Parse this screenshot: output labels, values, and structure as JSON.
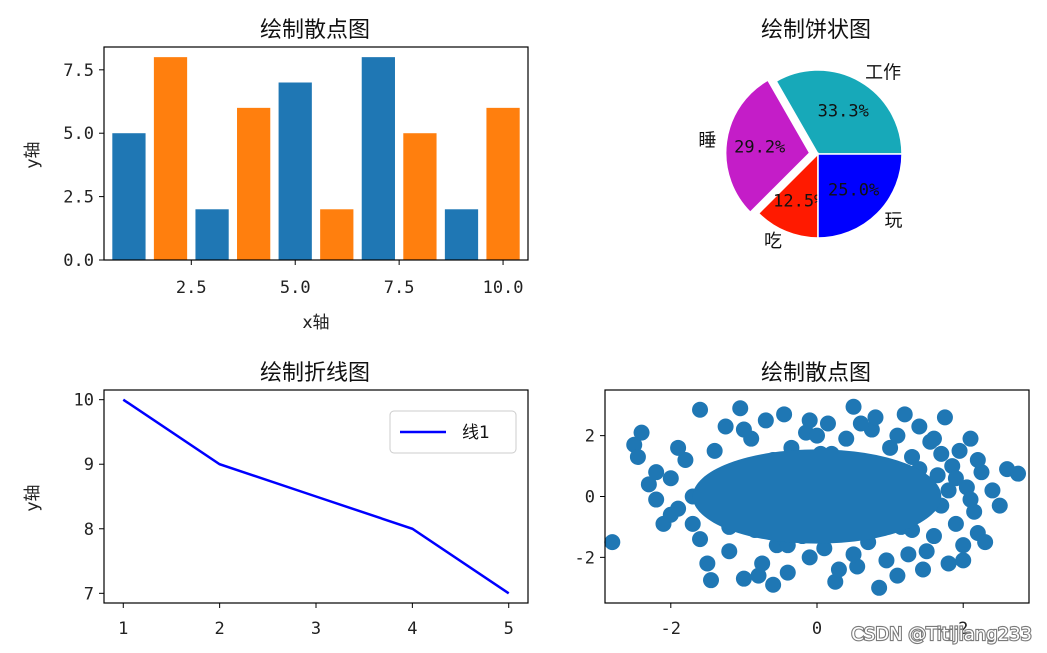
{
  "watermark": "CSDN @Titijiang233",
  "chart_data": [
    {
      "type": "bar",
      "title": "绘制散点图",
      "xlabel": "x轴",
      "ylabel": "y轴",
      "xlim": [
        0.4,
        10.6
      ],
      "ylim": [
        0,
        8.4
      ],
      "xticks": [
        "2.5",
        "5.0",
        "7.5",
        "10.0"
      ],
      "yticks": [
        "0.0",
        "2.5",
        "5.0",
        "7.5"
      ],
      "colors": [
        "#1f77b4",
        "#ff7f0e"
      ],
      "series": [
        {
          "x": [
            1,
            3,
            5,
            7,
            9
          ],
          "values": [
            5,
            2,
            7,
            8,
            2
          ]
        },
        {
          "x": [
            2,
            4,
            6,
            8,
            10
          ],
          "values": [
            8,
            6,
            2,
            5,
            6
          ]
        }
      ]
    },
    {
      "type": "pie",
      "title": "绘制饼状图",
      "labels": [
        "工作",
        "睡",
        "吃",
        "玩"
      ],
      "values": [
        33.3,
        29.2,
        12.5,
        25.0
      ],
      "pct_labels": [
        "33.3%",
        "29.2%",
        "12.5%",
        "25.0%"
      ],
      "colors": [
        "#17a9b9",
        "#c41dc8",
        "#ff1a00",
        "#0000ff"
      ],
      "explode": [
        0,
        0.1,
        0,
        0
      ]
    },
    {
      "type": "line",
      "title": "绘制折线图",
      "xlabel": "",
      "ylabel": "y轴",
      "x": [
        1,
        2,
        3,
        4,
        5
      ],
      "xlim": [
        0.8,
        5.2
      ],
      "ylim": [
        6.85,
        10.15
      ],
      "xticks": [
        "1",
        "2",
        "3",
        "4",
        "5"
      ],
      "yticks": [
        "7",
        "8",
        "9",
        "10"
      ],
      "legend": "top-right",
      "series": [
        {
          "name": "线1",
          "values": [
            10,
            9,
            8.5,
            8,
            7
          ],
          "color": "#0000ff"
        }
      ]
    },
    {
      "type": "scatter",
      "title": "绘制散点图",
      "xlim": [
        -2.9,
        2.9
      ],
      "ylim": [
        -3.5,
        3.5
      ],
      "xticks": [
        "-2",
        "0",
        "2"
      ],
      "yticks": [
        "-2",
        "0",
        "2"
      ],
      "color": "#1f77b4",
      "points": [
        [
          -2.8,
          -1.5
        ],
        [
          -2.5,
          1.7
        ],
        [
          -2.4,
          2.1
        ],
        [
          -2.45,
          1.3
        ],
        [
          -2.3,
          0.4
        ],
        [
          -2.2,
          -0.1
        ],
        [
          -2.0,
          0.6
        ],
        [
          -1.9,
          -0.4
        ],
        [
          -1.8,
          1.2
        ],
        [
          -1.7,
          -0.9
        ],
        [
          -1.6,
          2.85
        ],
        [
          -1.5,
          0.2
        ],
        [
          -1.45,
          -2.75
        ],
        [
          -1.4,
          1.5
        ],
        [
          -1.3,
          -0.6
        ],
        [
          -1.25,
          2.3
        ],
        [
          -1.2,
          -1.8
        ],
        [
          -1.1,
          0.9
        ],
        [
          -1.05,
          2.9
        ],
        [
          -1.0,
          -2.7
        ],
        [
          -0.95,
          -0.2
        ],
        [
          -0.9,
          1.9
        ],
        [
          -0.85,
          -1.1
        ],
        [
          -0.8,
          0.5
        ],
        [
          -0.75,
          -2.2
        ],
        [
          -0.7,
          2.5
        ],
        [
          -0.65,
          -0.7
        ],
        [
          -0.6,
          1.2
        ],
        [
          -0.55,
          -1.6
        ],
        [
          -0.5,
          0.1
        ],
        [
          -0.45,
          2.7
        ],
        [
          -0.4,
          -2.5
        ],
        [
          -0.35,
          1.6
        ],
        [
          -0.3,
          -0.3
        ],
        [
          -0.25,
          0.8
        ],
        [
          -0.2,
          -1.3
        ],
        [
          -0.15,
          2.1
        ],
        [
          -0.1,
          -2.0
        ],
        [
          -0.05,
          0.4
        ],
        [
          0.0,
          -0.9
        ],
        [
          0.05,
          1.4
        ],
        [
          0.1,
          -1.7
        ],
        [
          0.15,
          2.4
        ],
        [
          0.2,
          -0.1
        ],
        [
          0.25,
          -2.8
        ],
        [
          0.3,
          0.7
        ],
        [
          0.35,
          -1.2
        ],
        [
          0.4,
          1.9
        ],
        [
          0.45,
          -0.5
        ],
        [
          0.5,
          2.95
        ],
        [
          0.55,
          -2.3
        ],
        [
          0.6,
          0.2
        ],
        [
          0.65,
          1.1
        ],
        [
          0.7,
          -1.5
        ],
        [
          0.75,
          2.2
        ],
        [
          0.8,
          -0.8
        ],
        [
          0.85,
          -3.0
        ],
        [
          0.9,
          0.9
        ],
        [
          0.95,
          -2.1
        ],
        [
          1.0,
          1.6
        ],
        [
          1.05,
          -0.2
        ],
        [
          1.1,
          2.0
        ],
        [
          1.15,
          -1.0
        ],
        [
          1.2,
          0.5
        ],
        [
          1.25,
          -1.9
        ],
        [
          1.3,
          1.3
        ],
        [
          1.35,
          -0.6
        ],
        [
          1.4,
          2.3
        ],
        [
          1.45,
          -2.4
        ],
        [
          1.5,
          0.0
        ],
        [
          1.55,
          1.8
        ],
        [
          1.6,
          -1.3
        ],
        [
          1.65,
          0.7
        ],
        [
          1.7,
          -0.3
        ],
        [
          1.75,
          2.6
        ],
        [
          1.8,
          -2.2
        ],
        [
          1.85,
          1.0
        ],
        [
          1.9,
          -0.9
        ],
        [
          1.95,
          1.5
        ],
        [
          2.0,
          -1.6
        ],
        [
          2.05,
          0.3
        ],
        [
          2.1,
          1.9
        ],
        [
          2.15,
          -0.5
        ],
        [
          2.2,
          -1.2
        ],
        [
          2.25,
          0.8
        ],
        [
          2.3,
          -1.5
        ],
        [
          2.4,
          0.2
        ],
        [
          2.5,
          -0.3
        ],
        [
          2.6,
          0.9
        ],
        [
          2.75,
          0.75
        ],
        [
          -2.1,
          -0.9
        ],
        [
          -1.9,
          1.6
        ],
        [
          -1.6,
          -1.4
        ],
        [
          -1.3,
          0.4
        ],
        [
          -1.0,
          2.2
        ],
        [
          -0.7,
          0.2
        ],
        [
          -0.4,
          -1.6
        ],
        [
          -0.1,
          2.5
        ],
        [
          0.2,
          1.4
        ],
        [
          0.5,
          -1.9
        ],
        [
          0.8,
          2.6
        ],
        [
          1.1,
          -2.6
        ],
        [
          1.4,
          0.9
        ],
        [
          1.7,
          1.4
        ],
        [
          2.0,
          -2.1
        ],
        [
          -2.2,
          0.8
        ],
        [
          -1.5,
          -2.2
        ],
        [
          -0.8,
          -2.6
        ],
        [
          0.0,
          2.0
        ],
        [
          0.3,
          -2.4
        ],
        [
          0.6,
          2.4
        ],
        [
          0.9,
          -0.3
        ],
        [
          1.2,
          2.7
        ],
        [
          1.5,
          -1.8
        ],
        [
          1.8,
          0.2
        ],
        [
          2.1,
          -0.1
        ],
        [
          -1.7,
          0.0
        ],
        [
          -1.2,
          -1.0
        ],
        [
          -0.6,
          -2.9
        ],
        [
          0.1,
          0.9
        ],
        [
          0.4,
          0.3
        ],
        [
          0.7,
          -0.7
        ],
        [
          1.0,
          0.0
        ],
        [
          1.3,
          -1.1
        ],
        [
          1.6,
          1.9
        ],
        [
          1.9,
          0.6
        ],
        [
          2.2,
          1.2
        ],
        [
          -2.0,
          -0.6
        ]
      ]
    }
  ]
}
